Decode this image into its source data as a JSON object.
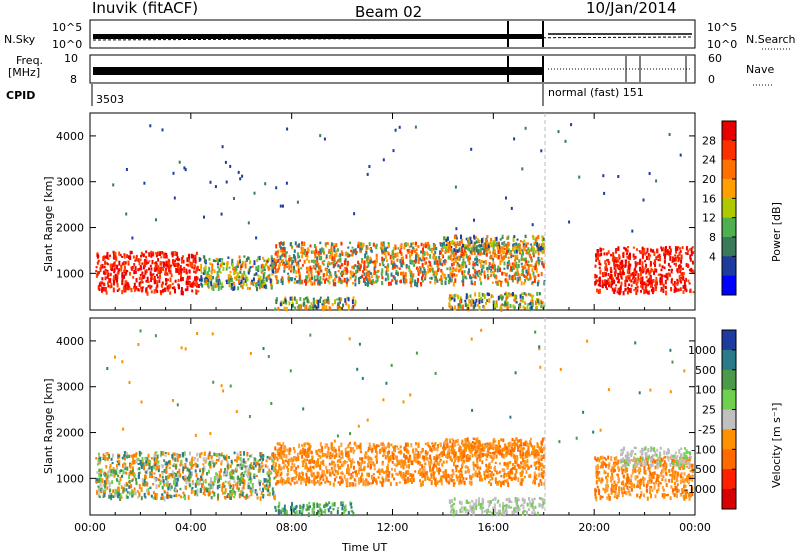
{
  "header": {
    "station": "Inuvik (fitACF)",
    "beam": "Beam 02",
    "date": "10/Jan/2014"
  },
  "status_panels": {
    "nsky_label": "N.Sky",
    "nsearch_label": "N.Search",
    "nsky_tick_top": "10^5",
    "nsky_tick_bottom": "10^0",
    "freq_label_top": "Freq.",
    "freq_label_unit": "[MHz]",
    "freq_tick_top": "10",
    "freq_tick_bottom": "8",
    "nave_label": "Nave",
    "nave_tick_top": "60",
    "nave_tick_bottom": "0",
    "cpid_label": "CPID",
    "cpid_first": "3503",
    "cpid_second": "normal (fast)  151"
  },
  "colorbars": {
    "power": {
      "label": "Power [dB]",
      "ticks": [
        "28",
        "24",
        "20",
        "16",
        "12",
        "8",
        "4"
      ],
      "colors": [
        "#e60000",
        "#ff3000",
        "#ff7000",
        "#ffa000",
        "#b0c800",
        "#4fb04f",
        "#3a7a5a",
        "#1e3ca0",
        "#0000ff"
      ]
    },
    "velocity": {
      "label": "Velocity [m s⁻¹]",
      "ticks": [
        "1000",
        "500",
        "100",
        "25",
        "-25",
        "-100",
        "-500",
        "-1000"
      ],
      "colors": [
        "#1e3ca0",
        "#2a7a8a",
        "#4a9a4a",
        "#6fd04f",
        "#c0c0c0",
        "#ff9000",
        "#ff6a00",
        "#ff2000",
        "#d80000"
      ]
    }
  },
  "chart_data": [
    {
      "type": "heatmap",
      "title": "",
      "quantity": "Power",
      "xlabel": "",
      "ylabel": "Slant Range [km]",
      "xlim": [
        "00:00",
        "24:00"
      ],
      "ylim": [
        200,
        4500
      ],
      "x_ticks": [
        "00:00",
        "04:00",
        "08:00",
        "12:00",
        "16:00",
        "20:00",
        "00:00"
      ],
      "y_ticks": [
        1000,
        2000,
        3000,
        4000
      ],
      "band_segments": [
        {
          "t0": 0.2,
          "t1": 4.3,
          "r0": 600,
          "r1": 1500,
          "level": "high"
        },
        {
          "t0": 4.3,
          "t1": 7.3,
          "r0": 700,
          "r1": 1400,
          "level": "mid"
        },
        {
          "t0": 7.3,
          "t1": 18.0,
          "r0": 800,
          "r1": 1700,
          "level": "mid-high"
        },
        {
          "t0": 14.0,
          "t1": 18.0,
          "r0": 1500,
          "r1": 1850,
          "level": "mid"
        },
        {
          "t0": 7.3,
          "t1": 10.5,
          "r0": 250,
          "r1": 500,
          "level": "mid"
        },
        {
          "t0": 14.2,
          "t1": 18.0,
          "r0": 250,
          "r1": 600,
          "level": "mid"
        },
        {
          "t0": 20.0,
          "t1": 23.9,
          "r0": 600,
          "r1": 1600,
          "level": "high"
        }
      ]
    },
    {
      "type": "heatmap",
      "title": "",
      "quantity": "Velocity",
      "xlabel": "Time UT",
      "ylabel": "Slant Range [km]",
      "xlim": [
        "00:00",
        "24:00"
      ],
      "ylim": [
        200,
        4500
      ],
      "x_ticks": [
        "00:00",
        "04:00",
        "08:00",
        "12:00",
        "16:00",
        "20:00",
        "00:00"
      ],
      "y_ticks": [
        1000,
        2000,
        3000,
        4000
      ],
      "band_segments": [
        {
          "t0": 0.2,
          "t1": 7.3,
          "r0": 600,
          "r1": 1600,
          "level": "-100 to 25"
        },
        {
          "t0": 7.3,
          "t1": 18.0,
          "r0": 900,
          "r1": 1800,
          "level": "-100"
        },
        {
          "t0": 14.0,
          "t1": 18.0,
          "r0": 1500,
          "r1": 1900,
          "level": "-100"
        },
        {
          "t0": 7.3,
          "t1": 10.5,
          "r0": 250,
          "r1": 500,
          "level": "100"
        },
        {
          "t0": 14.2,
          "t1": 18.0,
          "r0": 250,
          "r1": 600,
          "level": "25"
        },
        {
          "t0": 20.0,
          "t1": 23.9,
          "r0": 600,
          "r1": 1500,
          "level": "-100"
        },
        {
          "t0": 21.0,
          "t1": 23.8,
          "r0": 1300,
          "r1": 1700,
          "level": "25"
        }
      ]
    }
  ]
}
